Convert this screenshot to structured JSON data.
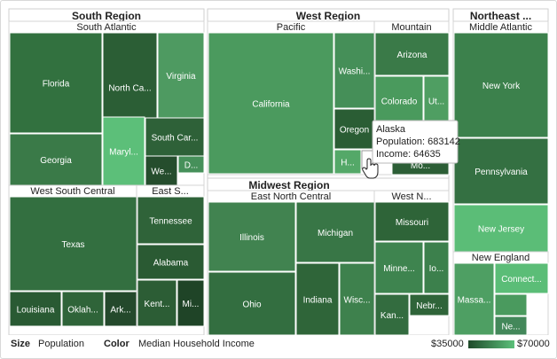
{
  "chart_data": {
    "type": "treemap",
    "size_measure": "Population",
    "color_measure": "Median Household Income",
    "color_range": {
      "min_label": "$35000",
      "max_label": "$70000",
      "min": 35000,
      "max": 70000,
      "min_color": "#1f4a2a",
      "max_color": "#5cc07a"
    },
    "regions": [
      {
        "name": "South Region",
        "divisions": [
          {
            "name": "South Atlantic",
            "states": [
              "Florida",
              "North Ca...",
              "Virginia",
              "Georgia",
              "Maryl...",
              "South Car...",
              "We...",
              "D..."
            ]
          },
          {
            "name": "West South Central",
            "states": [
              "Texas",
              "Louisiana",
              "Oklah...",
              "Ark..."
            ]
          },
          {
            "name": "East S...",
            "states": [
              "Tennessee",
              "Alabama",
              "Kent...",
              "Mi..."
            ]
          }
        ]
      },
      {
        "name": "West Region",
        "divisions": [
          {
            "name": "Pacific",
            "states": [
              "California",
              "Washi...",
              "Oregon",
              "H..."
            ]
          },
          {
            "name": "Mountain",
            "states": [
              "Arizona",
              "Colorado",
              "Ut...",
              "Mo..."
            ]
          }
        ]
      },
      {
        "name": "Midwest Region",
        "divisions": [
          {
            "name": "East North Central",
            "states": [
              "Illinois",
              "Michigan",
              "Ohio",
              "Indiana",
              "Wisc..."
            ]
          },
          {
            "name": "West N...",
            "states": [
              "Missouri",
              "Minne...",
              "Io...",
              "Kan...",
              "Nebr..."
            ]
          }
        ]
      },
      {
        "name": "Northeast ...",
        "divisions": [
          {
            "name": "Middle Atlantic",
            "states": [
              "New York",
              "Pennsylvania",
              "New Jersey"
            ]
          },
          {
            "name": "New England",
            "states": [
              "Massa...",
              "Connect...",
              "Ma...",
              "Ne..."
            ]
          }
        ]
      }
    ],
    "tooltip": {
      "state": "Alaska",
      "population_label": "Population:",
      "population": 683142,
      "income_label": "Income:",
      "income": 64635
    }
  },
  "footer": {
    "size_label": "Size",
    "size_value": "Population",
    "color_label": "Color",
    "color_value": "Median Household Income",
    "min_label": "$35000",
    "max_label": "$70000"
  }
}
